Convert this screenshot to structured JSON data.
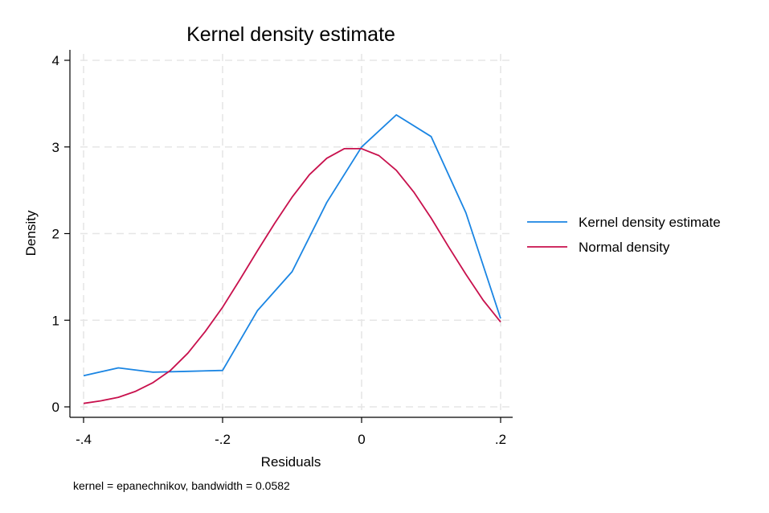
{
  "chart_data": {
    "type": "line",
    "title": "Kernel density estimate",
    "xlabel": "Residuals",
    "ylabel": "Density",
    "note": "kernel = epanechnikov, bandwidth = 0.0582",
    "xlim": [
      -0.4,
      0.2
    ],
    "ylim": [
      0,
      4
    ],
    "xticks": [
      {
        "value": -0.4,
        "label": "-.4"
      },
      {
        "value": -0.2,
        "label": "-.2"
      },
      {
        "value": 0,
        "label": "0"
      },
      {
        "value": 0.2,
        "label": ".2"
      }
    ],
    "yticks": [
      {
        "value": 0,
        "label": "0"
      },
      {
        "value": 1,
        "label": "1"
      },
      {
        "value": 2,
        "label": "2"
      },
      {
        "value": 3,
        "label": "3"
      },
      {
        "value": 4,
        "label": "4"
      }
    ],
    "grid": true,
    "legend_position": "right",
    "series": [
      {
        "name": "Kernel density estimate",
        "color": "#1a85e3",
        "x": [
          -0.4,
          -0.35,
          -0.3,
          -0.25,
          -0.2,
          -0.15,
          -0.1,
          -0.05,
          0,
          0.05,
          0.1,
          0.15,
          0.2
        ],
        "y": [
          0.36,
          0.45,
          0.4,
          0.41,
          0.42,
          1.11,
          1.56,
          2.36,
          3.0,
          3.37,
          3.12,
          2.24,
          1.02
        ]
      },
      {
        "name": "Normal density",
        "color": "#c8114d",
        "x": [
          -0.4,
          -0.375,
          -0.35,
          -0.325,
          -0.3,
          -0.275,
          -0.25,
          -0.225,
          -0.2,
          -0.175,
          -0.15,
          -0.125,
          -0.1,
          -0.075,
          -0.05,
          -0.025,
          0,
          0.025,
          0.05,
          0.075,
          0.1,
          0.125,
          0.15,
          0.175,
          0.2
        ],
        "y": [
          0.04,
          0.07,
          0.11,
          0.18,
          0.28,
          0.42,
          0.62,
          0.87,
          1.15,
          1.47,
          1.8,
          2.12,
          2.42,
          2.68,
          2.87,
          2.98,
          2.98,
          2.9,
          2.73,
          2.48,
          2.18,
          1.85,
          1.53,
          1.23,
          0.98
        ]
      }
    ]
  }
}
